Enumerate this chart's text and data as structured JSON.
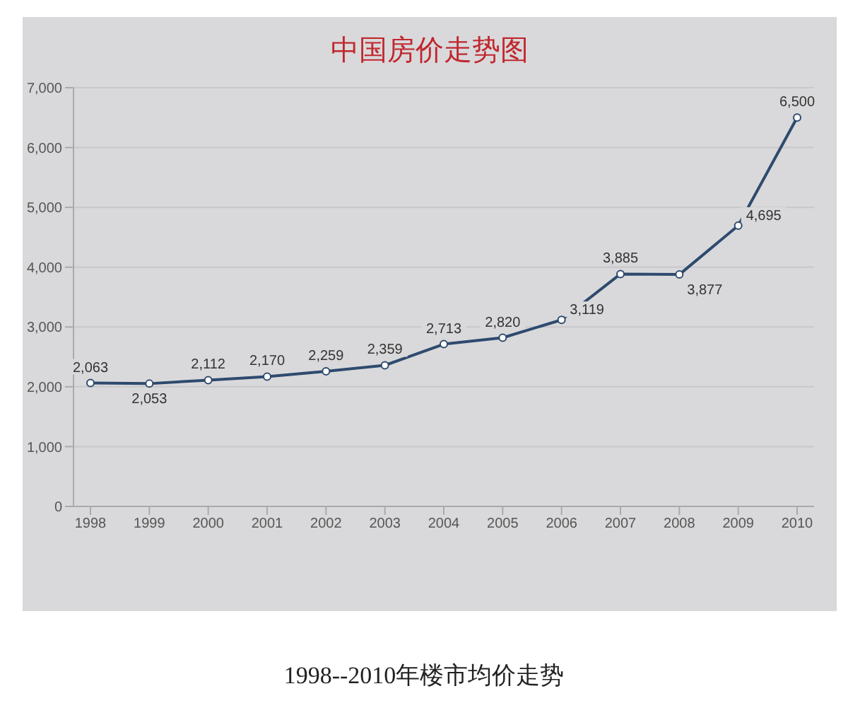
{
  "chart_data": {
    "type": "line",
    "title": "中国房价走势图",
    "categories": [
      "1998",
      "1999",
      "2000",
      "2001",
      "2002",
      "2003",
      "2004",
      "2005",
      "2006",
      "2007",
      "2008",
      "2009",
      "2010"
    ],
    "series": [
      {
        "color": "#2e4a6e",
        "values": [
          2063,
          2053,
          2112,
          2170,
          2259,
          2359,
          2713,
          2820,
          3119,
          3885,
          3877,
          4695,
          6500
        ],
        "value_labels": [
          "2,063",
          "2,053",
          "2,112",
          "2,170",
          "2,259",
          "2,359",
          "2,713",
          "2,820",
          "3,119",
          "3,885",
          "3,877",
          "4,695",
          "6,500"
        ]
      }
    ],
    "ylim": [
      0,
      7000
    ],
    "yticks": [
      0,
      {
        "value": 1000,
        "label": "1,000"
      },
      {
        "value": 2000,
        "label": "2,000"
      },
      {
        "value": 3000,
        "label": "3,000"
      },
      {
        "value": 4000,
        "label": "4,000"
      },
      {
        "value": 5000,
        "label": "5,000"
      },
      {
        "value": 6000,
        "label": "6,000"
      },
      {
        "value": 7000,
        "label": "7,000"
      }
    ],
    "grid": "y",
    "marker": "circle",
    "legend": false,
    "annotations": [
      "1998--2010年楼市均价走势"
    ]
  }
}
